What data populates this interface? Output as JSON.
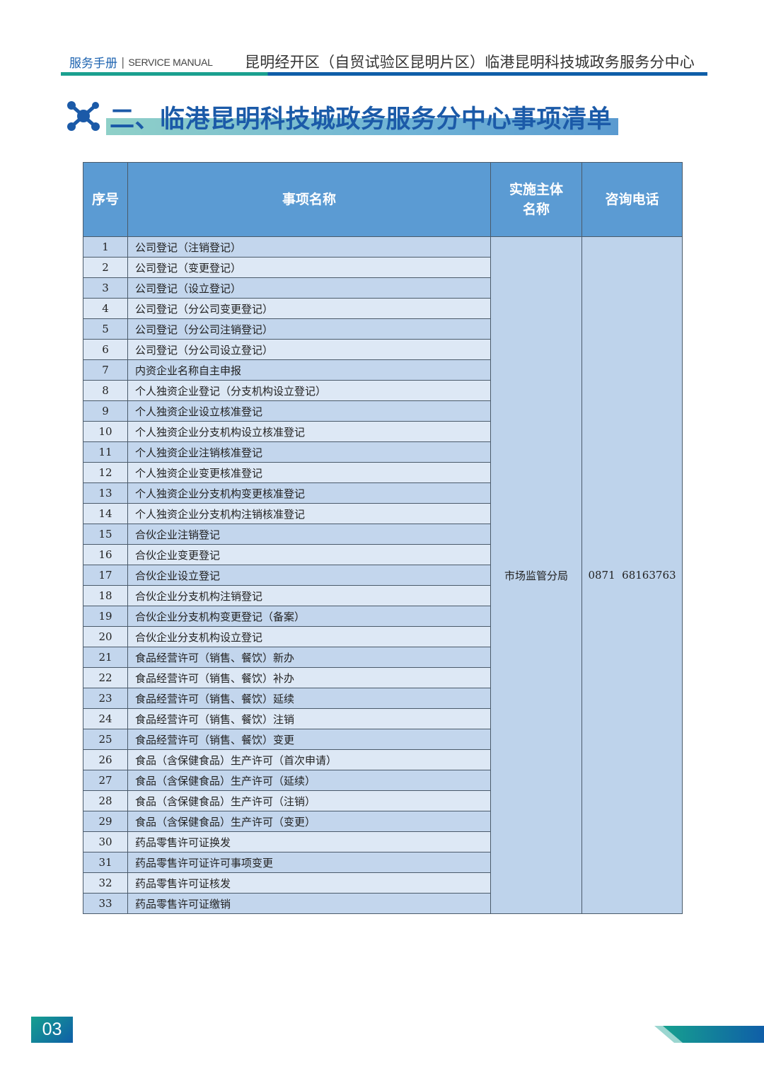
{
  "header": {
    "manual_cn": "服务手册",
    "manual_en": "SERVICE MANUAL",
    "center": "昆明经开区（自贸试验区昆明片区）临港昆明科技城政务服务分中心"
  },
  "section_title": "二、临港昆明科技城政务服务分中心事项清单",
  "colors": {
    "header_bg": "#5b9bd3",
    "row_odd": "#c3d6ed",
    "row_even": "#dde8f5",
    "brand_blue": "#1b5aa8",
    "brand_teal": "#1aa08f"
  },
  "table": {
    "columns": [
      "序号",
      "事项名称",
      "实施主体名称",
      "咨询电话"
    ],
    "agency": "市场监管分局",
    "phone": "0871  68163763",
    "rows": [
      {
        "no": "1",
        "name": "公司登记（注销登记）"
      },
      {
        "no": "2",
        "name": "公司登记（变更登记）"
      },
      {
        "no": "3",
        "name": "公司登记（设立登记）"
      },
      {
        "no": "4",
        "name": "公司登记（分公司变更登记）"
      },
      {
        "no": "5",
        "name": "公司登记（分公司注销登记）"
      },
      {
        "no": "6",
        "name": "公司登记（分公司设立登记）"
      },
      {
        "no": "7",
        "name": "内资企业名称自主申报"
      },
      {
        "no": "8",
        "name": "个人独资企业登记（分支机构设立登记）"
      },
      {
        "no": "9",
        "name": "个人独资企业设立核准登记"
      },
      {
        "no": "10",
        "name": "个人独资企业分支机构设立核准登记"
      },
      {
        "no": "11",
        "name": "个人独资企业注销核准登记"
      },
      {
        "no": "12",
        "name": "个人独资企业变更核准登记"
      },
      {
        "no": "13",
        "name": "个人独资企业分支机构变更核准登记"
      },
      {
        "no": "14",
        "name": "个人独资企业分支机构注销核准登记"
      },
      {
        "no": "15",
        "name": "合伙企业注销登记"
      },
      {
        "no": "16",
        "name": "合伙企业变更登记"
      },
      {
        "no": "17",
        "name": "合伙企业设立登记"
      },
      {
        "no": "18",
        "name": "合伙企业分支机构注销登记"
      },
      {
        "no": "19",
        "name": "合伙企业分支机构变更登记（备案）"
      },
      {
        "no": "20",
        "name": "合伙企业分支机构设立登记"
      },
      {
        "no": "21",
        "name": "食品经营许可（销售、餐饮）新办"
      },
      {
        "no": "22",
        "name": "食品经营许可（销售、餐饮）补办"
      },
      {
        "no": "23",
        "name": "食品经营许可（销售、餐饮）延续"
      },
      {
        "no": "24",
        "name": "食品经营许可（销售、餐饮）注销"
      },
      {
        "no": "25",
        "name": "食品经营许可（销售、餐饮）变更"
      },
      {
        "no": "26",
        "name": "食品（含保健食品）生产许可（首次申请）"
      },
      {
        "no": "27",
        "name": "食品（含保健食品）生产许可（延续）"
      },
      {
        "no": "28",
        "name": "食品（含保健食品）生产许可（注销）"
      },
      {
        "no": "29",
        "name": "食品（含保健食品）生产许可（变更）"
      },
      {
        "no": "30",
        "name": "药品零售许可证换发"
      },
      {
        "no": "31",
        "name": "药品零售许可证许可事项变更"
      },
      {
        "no": "32",
        "name": "药品零售许可证核发"
      },
      {
        "no": "33",
        "name": "药品零售许可证缴销"
      }
    ]
  },
  "footer": {
    "page_number": "03"
  }
}
